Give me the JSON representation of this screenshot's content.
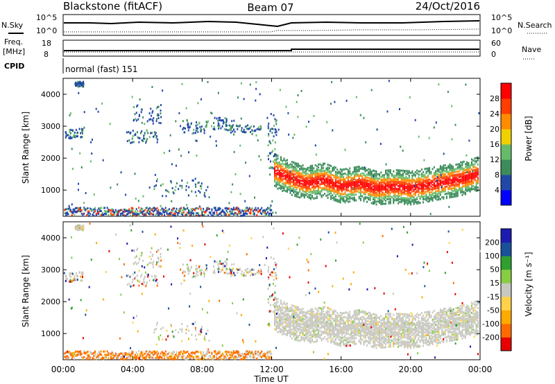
{
  "header": {
    "station": "Blackstone (fitACF)",
    "beam": "Beam 07",
    "date": "24/Oct/2016"
  },
  "summary": {
    "left_nsky_label": "N.Sky",
    "right_nsearch_label": "N.Search",
    "noise_ticks": [
      "10^5",
      "10^0"
    ],
    "left_freq_label_1": "Freq.",
    "left_freq_label_2": "[MHz]",
    "freq_ticks": [
      "18",
      "8"
    ],
    "right_nave_label": "Nave",
    "nave_ticks": [
      "60",
      "0"
    ],
    "cpid_label": "CPID",
    "cpid_text": "normal (fast) 151"
  },
  "colors": {
    "power": [
      "#0000ff",
      "#2148a8",
      "#3c8c5a",
      "#66bb6a",
      "#f0d000",
      "#ff8c00",
      "#ff3d00",
      "#ff0000"
    ],
    "velocity": [
      "#e60000",
      "#ff6a00",
      "#ffaa00",
      "#ffd24a",
      "#c8c8c0",
      "#88cc44",
      "#2fa02f",
      "#1a4f9a",
      "#1c1cb0"
    ]
  },
  "chart_data": [
    {
      "type": "heatmap",
      "title": "Power",
      "xlabel": "",
      "ylabel": "Slant Range [km]",
      "x_ticks": [
        "00:00",
        "04:00",
        "08:00",
        "12:00",
        "16:00",
        "20:00",
        "00:00"
      ],
      "x_range_hours": [
        0,
        24
      ],
      "y_range_km": [
        180,
        4500
      ],
      "y_ticks": [
        1000,
        2000,
        3000,
        4000
      ],
      "colorbar_label": "Power [dB]",
      "colorbar_range": [
        0,
        32
      ],
      "colorbar_ticks": [
        4,
        8,
        12,
        16,
        20,
        24,
        28
      ],
      "main_band": [
        {
          "hour": 12.1,
          "range_km": 1650
        },
        {
          "hour": 13,
          "range_km": 1420
        },
        {
          "hour": 14,
          "range_km": 1250
        },
        {
          "hour": 15,
          "range_km": 1350
        },
        {
          "hour": 16,
          "range_km": 1150
        },
        {
          "hour": 17,
          "range_km": 1250
        },
        {
          "hour": 18,
          "range_km": 1100
        },
        {
          "hour": 19,
          "range_km": 1150
        },
        {
          "hour": 20,
          "range_km": 1100
        },
        {
          "hour": 21,
          "range_km": 1200
        },
        {
          "hour": 22,
          "range_km": 1300
        },
        {
          "hour": 23,
          "range_km": 1400
        },
        {
          "hour": 23.9,
          "range_km": 1550
        }
      ]
    },
    {
      "type": "heatmap",
      "title": "Velocity",
      "xlabel": "Time UT",
      "ylabel": "Slant Range [km]",
      "x_ticks": [
        "00:00",
        "04:00",
        "08:00",
        "12:00",
        "16:00",
        "20:00",
        "00:00"
      ],
      "x_range_hours": [
        0,
        24
      ],
      "y_range_km": [
        180,
        4500
      ],
      "y_ticks": [
        1000,
        2000,
        3000,
        4000
      ],
      "colorbar_label": "Velocity [m s⁻¹]",
      "colorbar_ticks": [
        "200",
        "100",
        "50",
        "15",
        "-15",
        "-50",
        "-100",
        "-200"
      ]
    }
  ]
}
